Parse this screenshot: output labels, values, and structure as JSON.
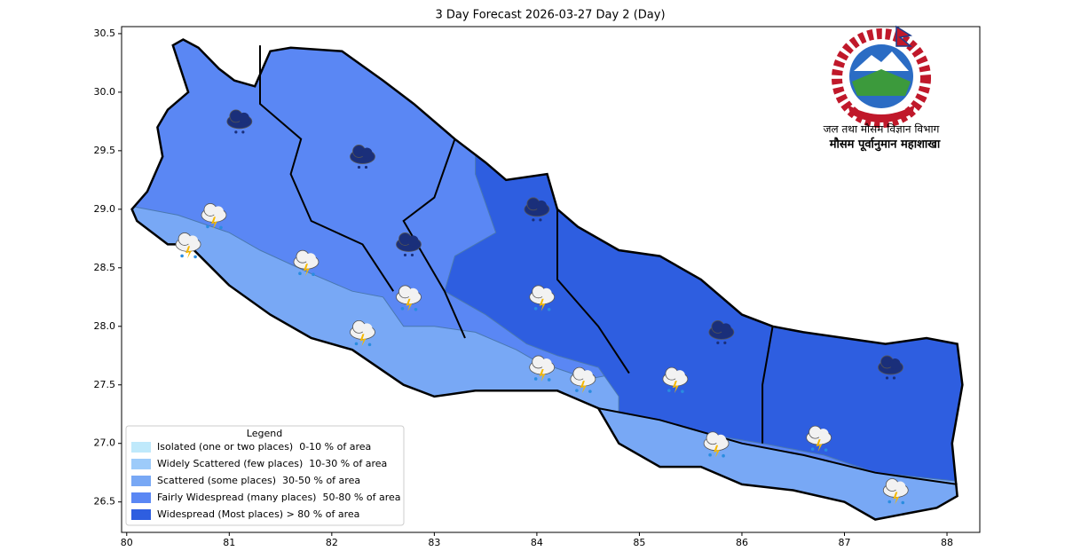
{
  "chart_data": {
    "type": "map",
    "title": "3 Day Forecast 2026-03-27 Day 2 (Day)",
    "xlim": [
      79.95,
      88.32
    ],
    "ylim": [
      26.24,
      30.56
    ],
    "xticks": [
      80,
      81,
      82,
      83,
      84,
      85,
      86,
      87,
      88
    ],
    "yticks": [
      26.5,
      {
        "value": 27,
        "label": "27.0"
      },
      27.5,
      {
        "value": 28,
        "label": "28.0"
      },
      28.5,
      {
        "value": 29,
        "label": "29.0"
      },
      29.5,
      {
        "value": 30,
        "label": "30.0"
      },
      30.5
    ],
    "legend": {
      "title": "Legend",
      "items": [
        {
          "label": "Isolated (one or two places)  0-10 % of area",
          "color": "#bfe9fb"
        },
        {
          "label": "Widely Scattered (few places)  10-30 % of area",
          "color": "#9dcbfa"
        },
        {
          "label": "Scattered (some places)  30-50 % of area",
          "color": "#78a8f5"
        },
        {
          "label": "Fairly Widespread (many places)  50-80 % of area",
          "color": "#5a87f4"
        },
        {
          "label": "Widespread (Most places) > 80 % of area",
          "color": "#2e5ee0"
        }
      ]
    }
  },
  "emblem": {
    "line1": "जल तथा मौसम विज्ञान विभाग",
    "line2": "मौसम पूर्वानुमान महाशाखा"
  }
}
